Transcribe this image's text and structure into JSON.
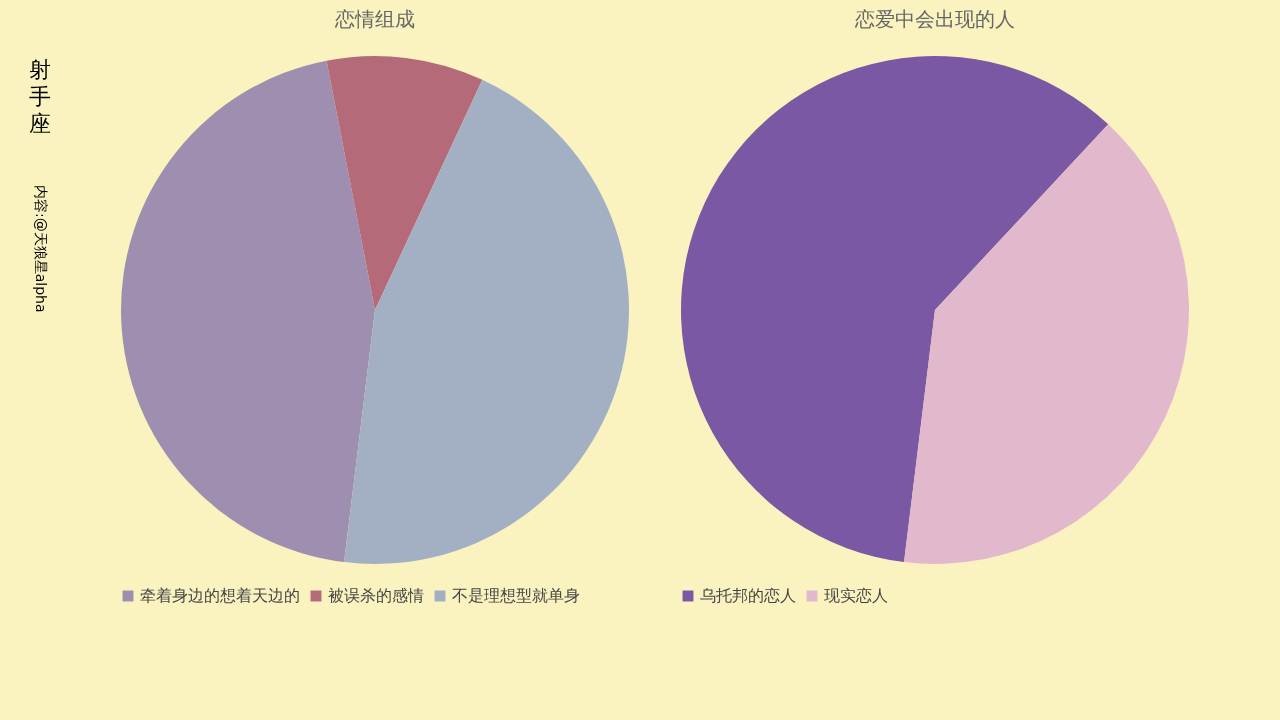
{
  "chart_data": [
    {
      "type": "other",
      "title": "射手座",
      "annotations": [
        "内容:@天狼星alpha"
      ]
    },
    {
      "type": "pie",
      "title": "恋情组成",
      "categories": [
        "牵着身边的想着天边的",
        "被误杀的感情",
        "不是理想型就单身"
      ],
      "values": [
        45,
        10,
        45
      ],
      "colors": [
        "#9e8fb0",
        "#b56a7a",
        "#a3b0c4"
      ],
      "legend": "bottom"
    },
    {
      "type": "pie",
      "title": "恋爱中会出现的人",
      "categories": [
        "乌托邦的恋人",
        "现实恋人"
      ],
      "values": [
        60,
        40
      ],
      "colors": [
        "#7a58a4",
        "#e2b8cc"
      ],
      "legend": "bottom"
    }
  ]
}
